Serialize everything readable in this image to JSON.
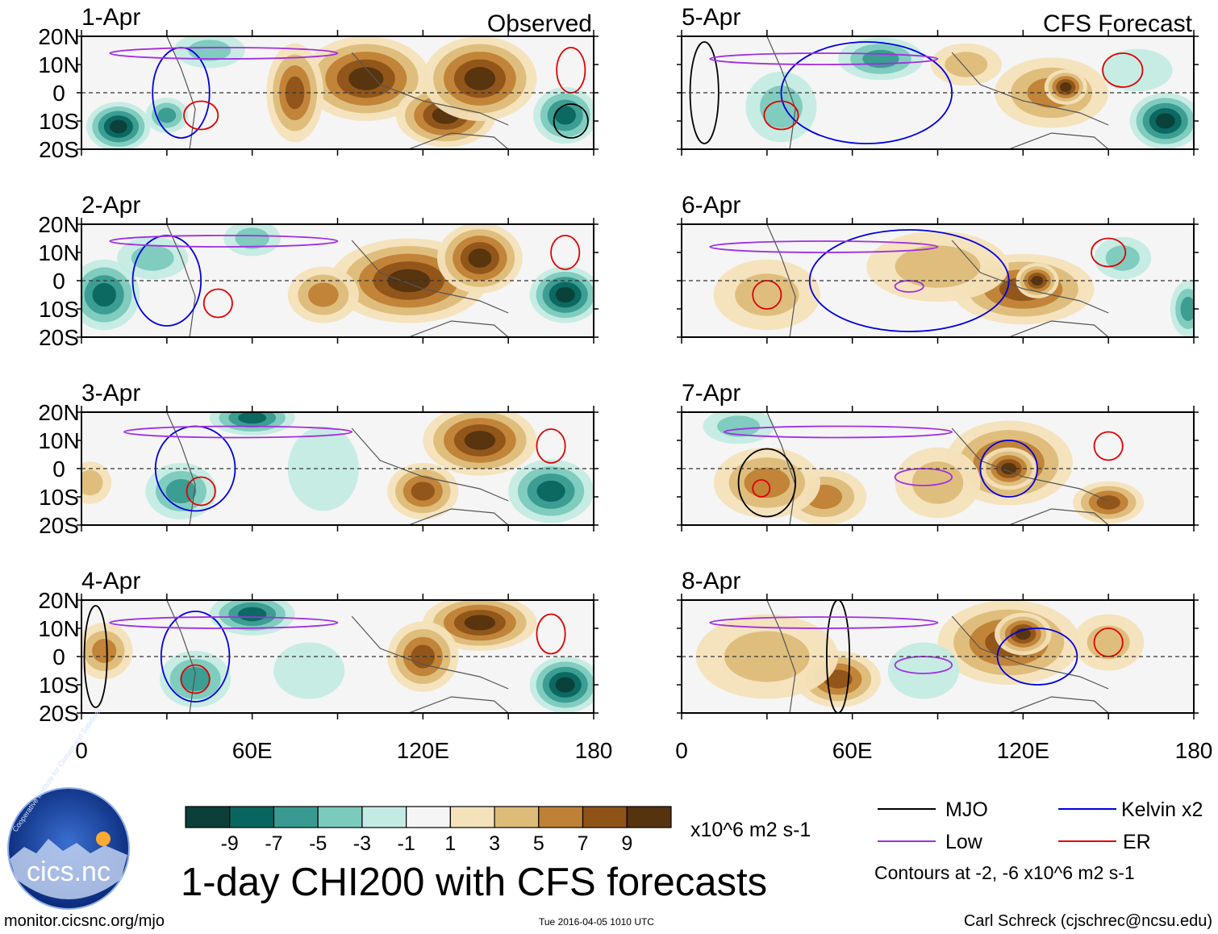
{
  "chart_data": {
    "type": "heatmap",
    "title": "1-day CHI200 with CFS forecasts",
    "units": "x10^6 m2 s-1",
    "colorbar": {
      "ticks": [
        "-9",
        "-7",
        "-5",
        "-3",
        "-1",
        "1",
        "3",
        "5",
        "7",
        "9"
      ],
      "colors": [
        "#0b3f38",
        "#08665f",
        "#389a90",
        "#7ccabc",
        "#c4ebe3",
        "#f5f5f5",
        "#f4e2bb",
        "#ddbc79",
        "#bf8136",
        "#8f5318",
        "#55330f"
      ]
    },
    "lat_ticks": [
      "20N",
      "10N",
      "0",
      "10S",
      "20S"
    ],
    "lon_ticks": [
      "0",
      "60E",
      "120E",
      "180"
    ],
    "lat_range": [
      -20,
      20
    ],
    "lon_range": [
      0,
      180
    ],
    "panels": [
      {
        "date": "1-Apr",
        "label": "Observed",
        "col": 0,
        "row": 0,
        "blobs": [
          [
            13,
            -12,
            9,
            7,
            -9
          ],
          [
            30,
            -8,
            6,
            5,
            -5
          ],
          [
            45,
            15,
            10,
            5,
            -3
          ],
          [
            100,
            5,
            18,
            12,
            9
          ],
          [
            128,
            -8,
            14,
            9,
            9
          ],
          [
            140,
            5,
            16,
            12,
            9
          ],
          [
            170,
            -8,
            9,
            8,
            -7
          ],
          [
            75,
            0,
            8,
            14,
            7
          ]
        ],
        "contours": [
          {
            "kind": "blue",
            "lon": 35,
            "lat": 0,
            "rl": 10,
            "rt": 16
          },
          {
            "kind": "red",
            "lon": 42,
            "lat": -8,
            "rl": 6,
            "rt": 5
          },
          {
            "kind": "red",
            "lon": 172,
            "lat": 8,
            "rl": 5,
            "rt": 8
          },
          {
            "kind": "black",
            "lon": 172,
            "lat": -10,
            "rl": 6,
            "rt": 6
          },
          {
            "kind": "purple",
            "lon": 50,
            "lat": 14,
            "rl": 40,
            "rt": 2
          }
        ]
      },
      {
        "date": "2-Apr",
        "label": "",
        "col": 0,
        "row": 1,
        "blobs": [
          [
            8,
            -5,
            10,
            10,
            -7
          ],
          [
            25,
            8,
            10,
            6,
            -3
          ],
          [
            60,
            15,
            8,
            5,
            -3
          ],
          [
            115,
            0,
            22,
            12,
            9
          ],
          [
            140,
            8,
            12,
            10,
            9
          ],
          [
            170,
            -5,
            10,
            8,
            -9
          ],
          [
            85,
            -5,
            10,
            8,
            5
          ]
        ],
        "contours": [
          {
            "kind": "blue",
            "lon": 30,
            "lat": 0,
            "rl": 12,
            "rt": 16
          },
          {
            "kind": "red",
            "lon": 48,
            "lat": -8,
            "rl": 5,
            "rt": 5
          },
          {
            "kind": "red",
            "lon": 170,
            "lat": 10,
            "rl": 5,
            "rt": 6
          },
          {
            "kind": "purple",
            "lon": 50,
            "lat": 14,
            "rl": 40,
            "rt": 2
          }
        ]
      },
      {
        "date": "3-Apr",
        "label": "",
        "col": 0,
        "row": 2,
        "blobs": [
          [
            35,
            -8,
            10,
            8,
            -5
          ],
          [
            60,
            18,
            12,
            5,
            -7
          ],
          [
            140,
            10,
            16,
            10,
            9
          ],
          [
            120,
            -8,
            10,
            8,
            7
          ],
          [
            165,
            -8,
            12,
            9,
            -7
          ],
          [
            85,
            0,
            10,
            12,
            -1
          ],
          [
            3,
            -5,
            6,
            6,
            3
          ]
        ],
        "contours": [
          {
            "kind": "blue",
            "lon": 40,
            "lat": 0,
            "rl": 14,
            "rt": 15
          },
          {
            "kind": "red",
            "lon": 42,
            "lat": -8,
            "rl": 5,
            "rt": 5
          },
          {
            "kind": "red",
            "lon": 165,
            "lat": 8,
            "rl": 5,
            "rt": 6
          },
          {
            "kind": "purple",
            "lon": 55,
            "lat": 13,
            "rl": 40,
            "rt": 2
          }
        ]
      },
      {
        "date": "4-Apr",
        "label": "",
        "col": 0,
        "row": 3,
        "blobs": [
          [
            8,
            2,
            8,
            8,
            5
          ],
          [
            40,
            -8,
            10,
            8,
            -5
          ],
          [
            60,
            15,
            12,
            6,
            -7
          ],
          [
            140,
            12,
            16,
            8,
            9
          ],
          [
            120,
            0,
            10,
            10,
            7
          ],
          [
            170,
            -10,
            10,
            8,
            -9
          ],
          [
            80,
            -5,
            10,
            8,
            -1
          ]
        ],
        "contours": [
          {
            "kind": "blue",
            "lon": 40,
            "lat": 0,
            "rl": 12,
            "rt": 16
          },
          {
            "kind": "red",
            "lon": 40,
            "lat": -8,
            "rl": 5,
            "rt": 5
          },
          {
            "kind": "red",
            "lon": 165,
            "lat": 8,
            "rl": 5,
            "rt": 7
          },
          {
            "kind": "black",
            "lon": 5,
            "lat": 0,
            "rl": 4,
            "rt": 18
          },
          {
            "kind": "purple",
            "lon": 50,
            "lat": 12,
            "rl": 40,
            "rt": 2
          }
        ]
      },
      {
        "date": "5-Apr",
        "label": "CFS Forecast",
        "col": 1,
        "row": 0,
        "blobs": [
          [
            35,
            -5,
            10,
            10,
            -3
          ],
          [
            70,
            12,
            12,
            6,
            -5
          ],
          [
            130,
            0,
            16,
            10,
            5
          ],
          [
            135,
            2,
            6,
            5,
            9
          ],
          [
            170,
            -10,
            10,
            8,
            -9
          ],
          [
            160,
            8,
            10,
            6,
            -1
          ],
          [
            100,
            10,
            10,
            6,
            3
          ]
        ],
        "contours": [
          {
            "kind": "blue",
            "lon": 65,
            "lat": 0,
            "rl": 30,
            "rt": 18
          },
          {
            "kind": "red",
            "lon": 35,
            "lat": -8,
            "rl": 6,
            "rt": 5
          },
          {
            "kind": "red",
            "lon": 155,
            "lat": 8,
            "rl": 7,
            "rt": 6
          },
          {
            "kind": "black",
            "lon": 8,
            "lat": 0,
            "rl": 5,
            "rt": 18
          },
          {
            "kind": "purple",
            "lon": 50,
            "lat": 12,
            "rl": 40,
            "rt": 2
          }
        ]
      },
      {
        "date": "6-Apr",
        "label": "",
        "col": 1,
        "row": 1,
        "blobs": [
          [
            120,
            -3,
            20,
            10,
            7
          ],
          [
            125,
            0,
            6,
            5,
            9
          ],
          [
            90,
            5,
            20,
            10,
            3
          ],
          [
            155,
            8,
            8,
            6,
            -3
          ],
          [
            178,
            -10,
            5,
            8,
            -5
          ],
          [
            30,
            -5,
            15,
            10,
            3
          ]
        ],
        "contours": [
          {
            "kind": "blue",
            "lon": 80,
            "lat": 0,
            "rl": 35,
            "rt": 18
          },
          {
            "kind": "red",
            "lon": 30,
            "lat": -5,
            "rl": 5,
            "rt": 5
          },
          {
            "kind": "red",
            "lon": 150,
            "lat": 10,
            "rl": 6,
            "rt": 5
          },
          {
            "kind": "purple",
            "lon": 80,
            "lat": -2,
            "rl": 5,
            "rt": 2
          },
          {
            "kind": "purple",
            "lon": 50,
            "lat": 12,
            "rl": 40,
            "rt": 2
          }
        ]
      },
      {
        "date": "7-Apr",
        "label": "",
        "col": 1,
        "row": 2,
        "blobs": [
          [
            115,
            2,
            18,
            12,
            7
          ],
          [
            115,
            0,
            8,
            6,
            9
          ],
          [
            150,
            -12,
            10,
            6,
            7
          ],
          [
            50,
            -10,
            12,
            8,
            5
          ],
          [
            30,
            -5,
            15,
            10,
            5
          ],
          [
            20,
            15,
            10,
            5,
            -3
          ],
          [
            90,
            -5,
            12,
            10,
            3
          ]
        ],
        "contours": [
          {
            "kind": "blue",
            "lon": 115,
            "lat": 0,
            "rl": 10,
            "rt": 10
          },
          {
            "kind": "red",
            "lon": 150,
            "lat": 8,
            "rl": 5,
            "rt": 5
          },
          {
            "kind": "red",
            "lon": 28,
            "lat": -7,
            "rl": 3,
            "rt": 3
          },
          {
            "kind": "black",
            "lon": 30,
            "lat": -5,
            "rl": 10,
            "rt": 12
          },
          {
            "kind": "purple",
            "lon": 85,
            "lat": -3,
            "rl": 10,
            "rt": 3
          },
          {
            "kind": "purple",
            "lon": 55,
            "lat": 13,
            "rl": 40,
            "rt": 2
          }
        ]
      },
      {
        "date": "8-Apr",
        "label": "",
        "col": 1,
        "row": 3,
        "blobs": [
          [
            115,
            5,
            20,
            12,
            7
          ],
          [
            120,
            8,
            8,
            6,
            9
          ],
          [
            55,
            -8,
            12,
            8,
            7
          ],
          [
            85,
            -5,
            10,
            8,
            -1
          ],
          [
            150,
            5,
            10,
            8,
            3
          ],
          [
            30,
            0,
            20,
            12,
            3
          ]
        ],
        "contours": [
          {
            "kind": "blue",
            "lon": 125,
            "lat": 0,
            "rl": 14,
            "rt": 10
          },
          {
            "kind": "red",
            "lon": 150,
            "lat": 5,
            "rl": 5,
            "rt": 5
          },
          {
            "kind": "black",
            "lon": 55,
            "lat": 0,
            "rl": 4,
            "rt": 20
          },
          {
            "kind": "purple",
            "lon": 85,
            "lat": -3,
            "rl": 10,
            "rt": 3
          },
          {
            "kind": "purple",
            "lon": 50,
            "lat": 12,
            "rl": 40,
            "rt": 2
          }
        ]
      }
    ]
  },
  "legend": {
    "items": [
      {
        "label": "MJO",
        "color": "#000000"
      },
      {
        "label": "Kelvin x2",
        "color": "#0000dd"
      },
      {
        "label": "Low",
        "color": "#a030e0"
      },
      {
        "label": "ER",
        "color": "#e00000"
      }
    ],
    "note": "Contours at -2, -6 x10^6 m2 s-1"
  },
  "logo": {
    "text": "cics.nc",
    "ring": "Cooperative Institute for Climate and Satellites"
  },
  "footer": {
    "left": "monitor.cicsnc.org/mjo",
    "center": "Tue 2016-04-05 1010 UTC",
    "right": "Carl Schreck (cjschrec@ncsu.edu)"
  }
}
